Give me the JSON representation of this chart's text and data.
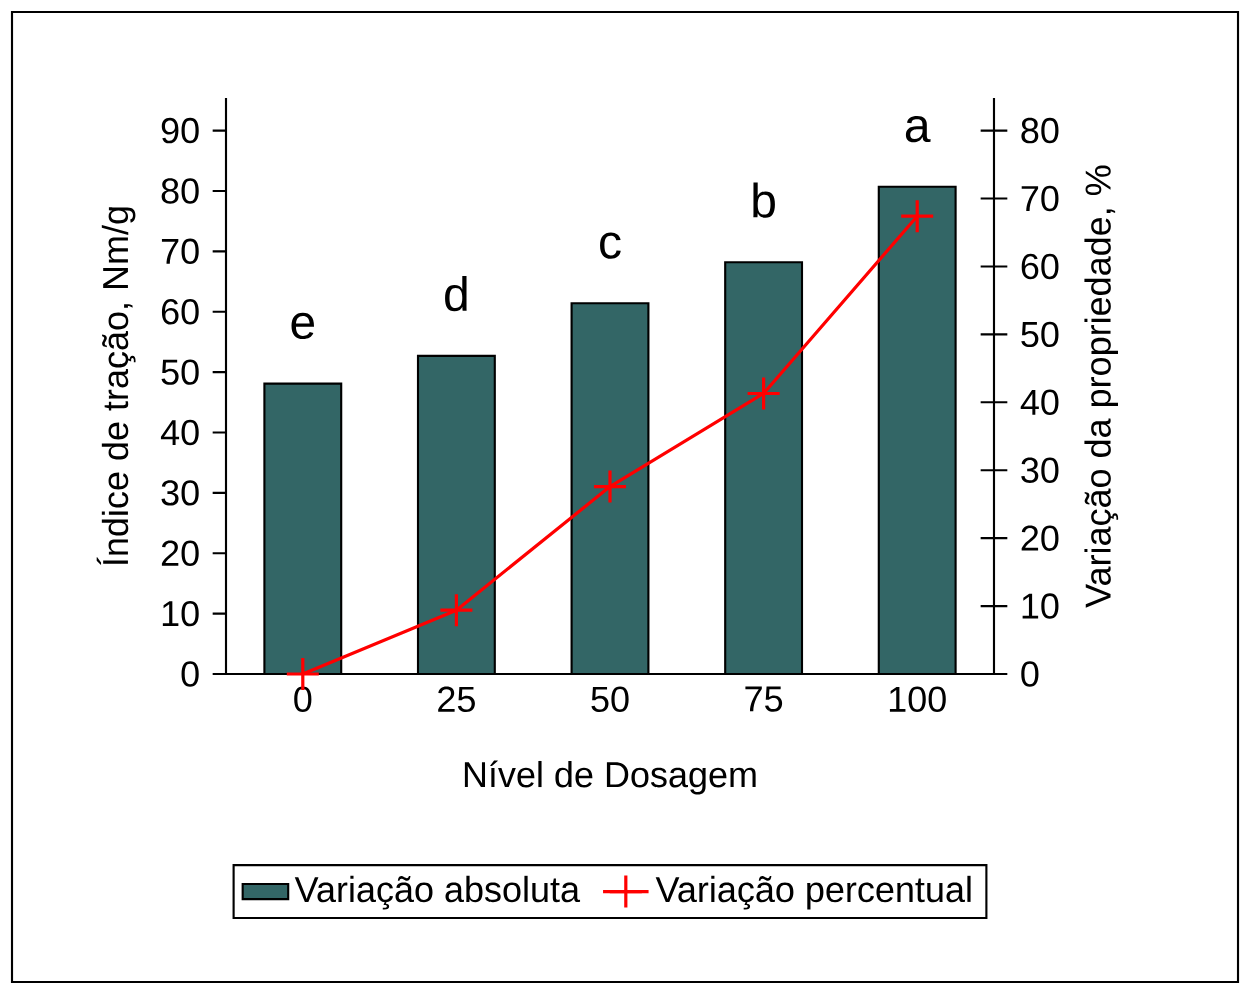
{
  "chart_data": {
    "type": "bar",
    "xlabel": "Nível de Dosagem",
    "ylabel": "Índice de tração, Nm/g",
    "y2label": "Variação da propriedade, %",
    "categories": [
      "0",
      "25",
      "50",
      "75",
      "100"
    ],
    "series": [
      {
        "name": "Variação absoluta",
        "color": "#336666",
        "values": [
          48.1,
          52.7,
          61.4,
          68.2,
          80.7
        ]
      },
      {
        "name": "Variação percentual",
        "type": "line",
        "axis": "y2",
        "color": "#ff0000",
        "marker": "cross",
        "line_style": "solid",
        "values": [
          0,
          9.4,
          27.6,
          41.3,
          67.4
        ]
      }
    ],
    "ylim": [
      0,
      95.4
    ],
    "yticks": [
      0,
      10,
      20,
      30,
      40,
      50,
      60,
      70,
      80,
      90
    ],
    "y2lim": [
      0,
      84.8
    ],
    "y2ticks": [
      0,
      10,
      20,
      30,
      40,
      50,
      60,
      70,
      80
    ],
    "annotations": [
      {
        "text": "e",
        "x": "0",
        "y": 48.1
      },
      {
        "text": "d",
        "x": "25",
        "y": 52.7
      },
      {
        "text": "c",
        "x": "50",
        "y": 61.4
      },
      {
        "text": "b",
        "x": "75",
        "y": 68.2
      },
      {
        "text": "a",
        "x": "100",
        "y": 80.7
      }
    ],
    "grid": false,
    "legend": "bottom"
  }
}
